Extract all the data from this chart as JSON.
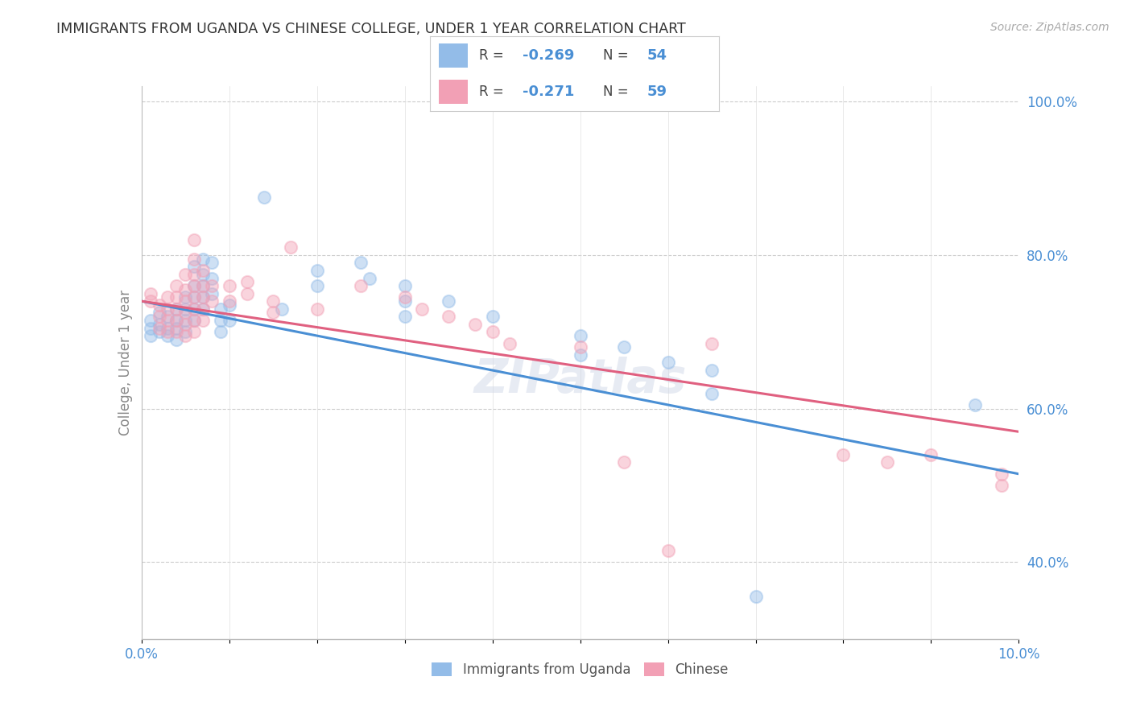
{
  "title": "IMMIGRANTS FROM UGANDA VS CHINESE COLLEGE, UNDER 1 YEAR CORRELATION CHART",
  "source": "Source: ZipAtlas.com",
  "ylabel": "College, Under 1 year",
  "ylabel_right_ticks": [
    "40.0%",
    "60.0%",
    "80.0%",
    "100.0%"
  ],
  "ylabel_right_vals": [
    0.4,
    0.6,
    0.8,
    1.0
  ],
  "legend_label_blue": "Immigrants from Uganda",
  "legend_label_pink": "Chinese",
  "legend_r_blue": "-0.269",
  "legend_n_blue": "54",
  "legend_r_pink": "-0.271",
  "legend_n_pink": "59",
  "blue_scatter": [
    [
      0.001,
      0.715
    ],
    [
      0.001,
      0.705
    ],
    [
      0.001,
      0.695
    ],
    [
      0.002,
      0.725
    ],
    [
      0.002,
      0.71
    ],
    [
      0.002,
      0.7
    ],
    [
      0.003,
      0.72
    ],
    [
      0.003,
      0.705
    ],
    [
      0.003,
      0.695
    ],
    [
      0.004,
      0.73
    ],
    [
      0.004,
      0.715
    ],
    [
      0.004,
      0.705
    ],
    [
      0.004,
      0.69
    ],
    [
      0.005,
      0.745
    ],
    [
      0.005,
      0.73
    ],
    [
      0.005,
      0.715
    ],
    [
      0.005,
      0.7
    ],
    [
      0.006,
      0.785
    ],
    [
      0.006,
      0.76
    ],
    [
      0.006,
      0.745
    ],
    [
      0.006,
      0.73
    ],
    [
      0.006,
      0.715
    ],
    [
      0.007,
      0.795
    ],
    [
      0.007,
      0.775
    ],
    [
      0.007,
      0.76
    ],
    [
      0.007,
      0.745
    ],
    [
      0.007,
      0.73
    ],
    [
      0.008,
      0.79
    ],
    [
      0.008,
      0.77
    ],
    [
      0.008,
      0.75
    ],
    [
      0.009,
      0.73
    ],
    [
      0.009,
      0.715
    ],
    [
      0.009,
      0.7
    ],
    [
      0.01,
      0.735
    ],
    [
      0.01,
      0.715
    ],
    [
      0.014,
      0.875
    ],
    [
      0.016,
      0.73
    ],
    [
      0.02,
      0.78
    ],
    [
      0.02,
      0.76
    ],
    [
      0.025,
      0.79
    ],
    [
      0.026,
      0.77
    ],
    [
      0.03,
      0.76
    ],
    [
      0.03,
      0.74
    ],
    [
      0.03,
      0.72
    ],
    [
      0.035,
      0.74
    ],
    [
      0.04,
      0.72
    ],
    [
      0.05,
      0.695
    ],
    [
      0.05,
      0.67
    ],
    [
      0.055,
      0.68
    ],
    [
      0.06,
      0.66
    ],
    [
      0.065,
      0.65
    ],
    [
      0.065,
      0.62
    ],
    [
      0.07,
      0.355
    ],
    [
      0.095,
      0.605
    ]
  ],
  "pink_scatter": [
    [
      0.001,
      0.75
    ],
    [
      0.001,
      0.74
    ],
    [
      0.002,
      0.735
    ],
    [
      0.002,
      0.72
    ],
    [
      0.002,
      0.705
    ],
    [
      0.003,
      0.745
    ],
    [
      0.003,
      0.73
    ],
    [
      0.003,
      0.715
    ],
    [
      0.003,
      0.7
    ],
    [
      0.004,
      0.76
    ],
    [
      0.004,
      0.745
    ],
    [
      0.004,
      0.73
    ],
    [
      0.004,
      0.715
    ],
    [
      0.004,
      0.7
    ],
    [
      0.005,
      0.775
    ],
    [
      0.005,
      0.755
    ],
    [
      0.005,
      0.74
    ],
    [
      0.005,
      0.725
    ],
    [
      0.005,
      0.71
    ],
    [
      0.005,
      0.695
    ],
    [
      0.006,
      0.82
    ],
    [
      0.006,
      0.795
    ],
    [
      0.006,
      0.775
    ],
    [
      0.006,
      0.76
    ],
    [
      0.006,
      0.745
    ],
    [
      0.006,
      0.73
    ],
    [
      0.006,
      0.715
    ],
    [
      0.006,
      0.7
    ],
    [
      0.007,
      0.78
    ],
    [
      0.007,
      0.76
    ],
    [
      0.007,
      0.745
    ],
    [
      0.007,
      0.73
    ],
    [
      0.007,
      0.715
    ],
    [
      0.008,
      0.76
    ],
    [
      0.008,
      0.74
    ],
    [
      0.01,
      0.76
    ],
    [
      0.01,
      0.74
    ],
    [
      0.012,
      0.765
    ],
    [
      0.012,
      0.75
    ],
    [
      0.015,
      0.74
    ],
    [
      0.015,
      0.725
    ],
    [
      0.017,
      0.81
    ],
    [
      0.02,
      0.73
    ],
    [
      0.025,
      0.76
    ],
    [
      0.03,
      0.745
    ],
    [
      0.032,
      0.73
    ],
    [
      0.035,
      0.72
    ],
    [
      0.038,
      0.71
    ],
    [
      0.04,
      0.7
    ],
    [
      0.042,
      0.685
    ],
    [
      0.05,
      0.68
    ],
    [
      0.055,
      0.53
    ],
    [
      0.06,
      0.415
    ],
    [
      0.065,
      0.685
    ],
    [
      0.08,
      0.54
    ],
    [
      0.085,
      0.53
    ],
    [
      0.09,
      0.54
    ],
    [
      0.098,
      0.515
    ],
    [
      0.098,
      0.5
    ]
  ],
  "blue_line_x": [
    0.0,
    0.1
  ],
  "blue_line_y": [
    0.74,
    0.515
  ],
  "pink_line_x": [
    0.0,
    0.1
  ],
  "pink_line_y": [
    0.74,
    0.57
  ],
  "xlim": [
    0.0,
    0.1
  ],
  "ylim": [
    0.3,
    1.02
  ],
  "bg_color": "#ffffff",
  "scatter_alpha": 0.45,
  "scatter_size": 120,
  "blue_color": "#93bce8",
  "pink_color": "#f2a0b5",
  "blue_line_color": "#4a8fd4",
  "pink_line_color": "#e06080",
  "grid_color": "#cccccc",
  "text_color": "#4a8fd4"
}
